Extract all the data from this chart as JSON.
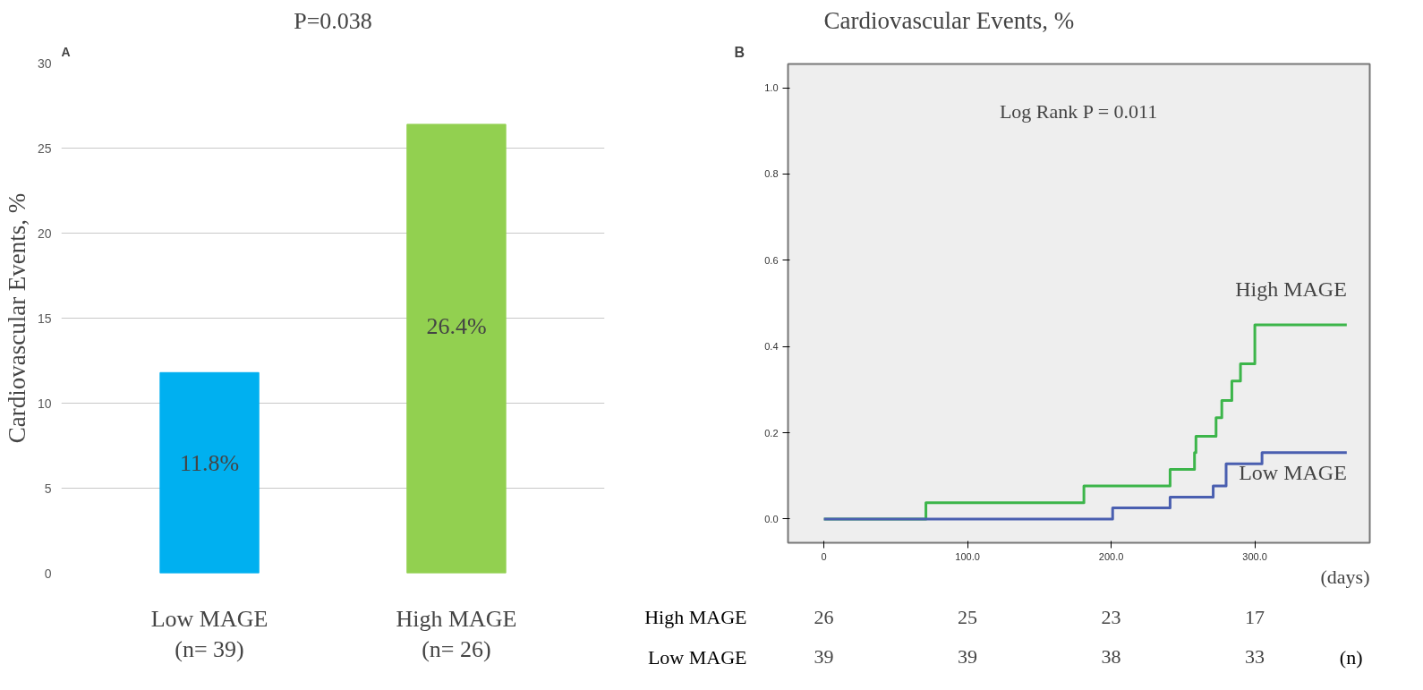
{
  "chart_data": [
    {
      "type": "bar",
      "title": "P=0.038",
      "ylabel": "Cardiovascular Events, %",
      "annotations": [
        "A"
      ],
      "categories": [
        "Low MAGE\n(n= 39)",
        "High MAGE\n(n= 26)"
      ],
      "values": [
        11.8,
        26.4
      ],
      "colors": [
        "#00b0f0",
        "#92d050"
      ],
      "value_labels": [
        "11.8%",
        "26.4%"
      ],
      "ylim": [
        0,
        30
      ],
      "yticks": [
        0,
        5,
        10,
        15,
        20,
        25,
        30
      ],
      "grid": "y"
    },
    {
      "type": "step",
      "title": "Cardiovascular Events, %",
      "xlabel": "(days)",
      "annotations": [
        "B",
        "Log Rank P = 0.011"
      ],
      "series": [
        {
          "name": "High MAGE",
          "color": "#3cb54a",
          "x": [
            0,
            71,
            181,
            241,
            258,
            259,
            273,
            277,
            284,
            290,
            300,
            364
          ],
          "values": [
            0,
            0.038,
            0.077,
            0.115,
            0.154,
            0.192,
            0.235,
            0.275,
            0.32,
            0.36,
            0.45,
            0.45
          ]
        },
        {
          "name": "Low MAGE",
          "color": "#4a5fb0",
          "x": [
            0,
            201,
            241,
            271,
            280,
            305,
            364
          ],
          "values": [
            0,
            0.026,
            0.051,
            0.077,
            0.128,
            0.154,
            0.154
          ]
        }
      ],
      "xlim": [
        -25,
        380
      ],
      "xticks": [
        0,
        {
          "value": 100,
          "label": "100.0"
        },
        {
          "value": 200,
          "label": "200.0"
        },
        {
          "value": 300,
          "label": "300.0"
        }
      ],
      "ylim": [
        -0.055,
        1.055
      ],
      "yticks": [
        {
          "value": 0,
          "label": "0.0"
        },
        {
          "value": 0.2,
          "label": "0.2"
        },
        {
          "value": 0.4,
          "label": "0.4"
        },
        {
          "value": 0.6,
          "label": "0.6"
        },
        {
          "value": 0.8,
          "label": "0.8"
        },
        {
          "value": 1,
          "label": "1.0"
        }
      ],
      "grid": false
    },
    {
      "type": "other",
      "y_categories": [
        "High MAGE",
        "Low MAGE"
      ],
      "cell_labels": [
        [
          "26",
          "25",
          "23",
          "17"
        ],
        [
          "39",
          "39",
          "38",
          "33"
        ]
      ],
      "annotations": [
        "(n)"
      ]
    }
  ]
}
